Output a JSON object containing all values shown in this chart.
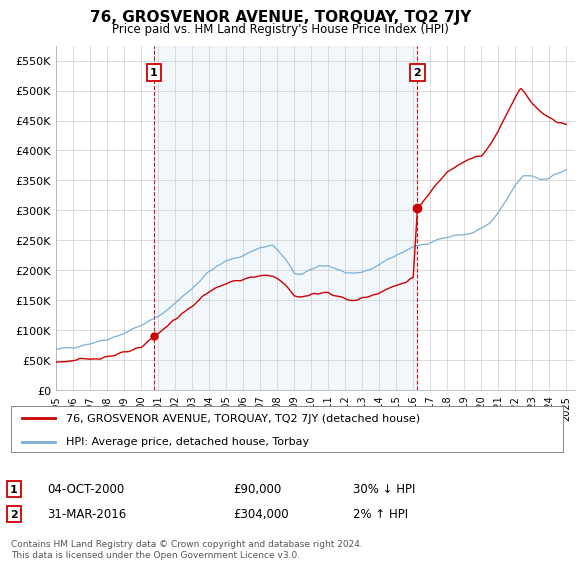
{
  "title": "76, GROSVENOR AVENUE, TORQUAY, TQ2 7JY",
  "subtitle": "Price paid vs. HM Land Registry's House Price Index (HPI)",
  "figsize": [
    6.0,
    5.6
  ],
  "dpi": 100,
  "ylim": [
    0,
    575000
  ],
  "yticks": [
    0,
    50000,
    100000,
    150000,
    200000,
    250000,
    300000,
    350000,
    400000,
    450000,
    500000,
    550000
  ],
  "ytick_labels": [
    "£0",
    "£50K",
    "£100K",
    "£150K",
    "£200K",
    "£250K",
    "£300K",
    "£350K",
    "£400K",
    "£450K",
    "£500K",
    "£550K"
  ],
  "xlim_start": 1995.0,
  "xlim_end": 2025.5,
  "sale1_x": 2000.75,
  "sale1_y": 90000,
  "sale1_label": "1",
  "sale1_date": "04-OCT-2000",
  "sale1_price": "£90,000",
  "sale1_hpi": "30% ↓ HPI",
  "sale2_x": 2016.25,
  "sale2_y": 304000,
  "sale2_label": "2",
  "sale2_date": "31-MAR-2016",
  "sale2_price": "£304,000",
  "sale2_hpi": "2% ↑ HPI",
  "red_color": "#cc0000",
  "blue_color": "#7ab0d4",
  "fill_color": "#ddeeff",
  "legend_label_red": "76, GROSVENOR AVENUE, TORQUAY, TQ2 7JY (detached house)",
  "legend_label_blue": "HPI: Average price, detached house, Torbay",
  "footer": "Contains HM Land Registry data © Crown copyright and database right 2024.\nThis data is licensed under the Open Government Licence v3.0.",
  "background_color": "#ffffff",
  "grid_color": "#cccccc"
}
